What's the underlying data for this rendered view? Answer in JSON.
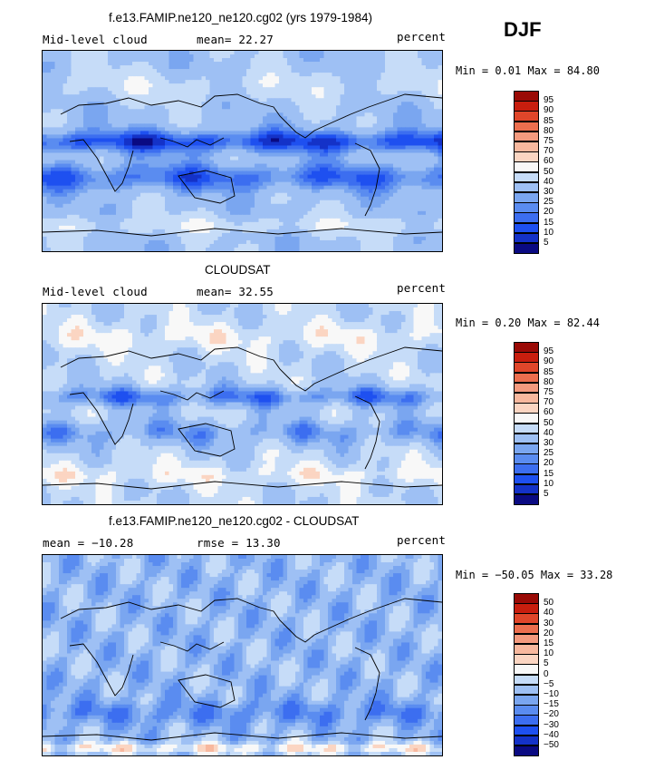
{
  "season": "DJF",
  "colors": {
    "palette_abs": [
      "#0a0a82",
      "#1432c8",
      "#1e50f0",
      "#3c6ef0",
      "#5a8cf0",
      "#7aa6f0",
      "#9ec0f4",
      "#c6dcf8",
      "#f8f8f8",
      "#fbd5c2",
      "#f8b89e",
      "#f49a7e",
      "#ec6e4e",
      "#e0462a",
      "#c81e0e",
      "#9a0a06"
    ],
    "palette_diff": [
      "#0a0a82",
      "#1432c8",
      "#1e50f0",
      "#3c6ef0",
      "#5a8cf0",
      "#7aa6f0",
      "#9ec0f4",
      "#c6dcf8",
      "#f8f8f8",
      "#fbd5c2",
      "#f8b89e",
      "#f49a7e",
      "#ec6e4e",
      "#e0462a",
      "#c81e0e",
      "#9a0a06"
    ]
  },
  "panels": [
    {
      "title": "f.e13.FAMIP.ne120_ne120.cg02 (yrs 1979-1984)",
      "left_label": "Mid-level cloud",
      "center_label": "mean=  22.27",
      "right_label": "percent",
      "min_max": "Min =   0.01 Max =  84.80"
    },
    {
      "title": "CLOUDSAT",
      "left_label": "Mid-level cloud",
      "center_label": "mean=  32.55",
      "right_label": "percent",
      "min_max": "Min =   0.20 Max =  82.44"
    },
    {
      "title": "f.e13.FAMIP.ne120_ne120.cg02 - CLOUDSAT",
      "left_label": "mean = −10.28",
      "center_label": "rmse =  13.30",
      "right_label": "percent",
      "min_max": "Min = −50.05 Max =  33.28"
    }
  ],
  "chart_data": [
    {
      "type": "heatmap",
      "title": "f.e13.FAMIP.ne120_ne120.cg02 (yrs 1979-1984)",
      "variable": "Mid-level cloud",
      "units": "percent",
      "mean": 22.27,
      "min": 0.01,
      "max": 84.8,
      "levels": [
        5,
        10,
        15,
        20,
        25,
        30,
        40,
        50,
        60,
        70,
        75,
        80,
        85,
        90,
        95
      ],
      "level_labels": [
        "5",
        "10",
        "15",
        "20",
        "25",
        "30",
        "40",
        "50",
        "60",
        "70",
        "75",
        "80",
        "85",
        "90",
        "95"
      ],
      "xlim": [
        -180,
        180
      ],
      "ylim": [
        -90,
        90
      ]
    },
    {
      "type": "heatmap",
      "title": "CLOUDSAT",
      "variable": "Mid-level cloud",
      "units": "percent",
      "mean": 32.55,
      "min": 0.2,
      "max": 82.44,
      "levels": [
        5,
        10,
        15,
        20,
        25,
        30,
        40,
        50,
        60,
        70,
        75,
        80,
        85,
        90,
        95
      ],
      "level_labels": [
        "5",
        "10",
        "15",
        "20",
        "25",
        "30",
        "40",
        "50",
        "60",
        "70",
        "75",
        "80",
        "85",
        "90",
        "95"
      ],
      "xlim": [
        -180,
        180
      ],
      "ylim": [
        -90,
        90
      ]
    },
    {
      "type": "heatmap",
      "title": "f.e13.FAMIP.ne120_ne120.cg02 - CLOUDSAT",
      "units": "percent",
      "mean": -10.28,
      "rmse": 13.3,
      "min": -50.05,
      "max": 33.28,
      "levels": [
        -50,
        -40,
        -30,
        -20,
        -15,
        -10,
        -5,
        0,
        5,
        10,
        15,
        20,
        30,
        40,
        50
      ],
      "level_labels": [
        "−50",
        "−40",
        "−30",
        "−20",
        "−15",
        "−10",
        "−5",
        "0",
        "5",
        "10",
        "15",
        "20",
        "30",
        "40",
        "50"
      ],
      "xlim": [
        -180,
        180
      ],
      "ylim": [
        -90,
        90
      ]
    }
  ]
}
